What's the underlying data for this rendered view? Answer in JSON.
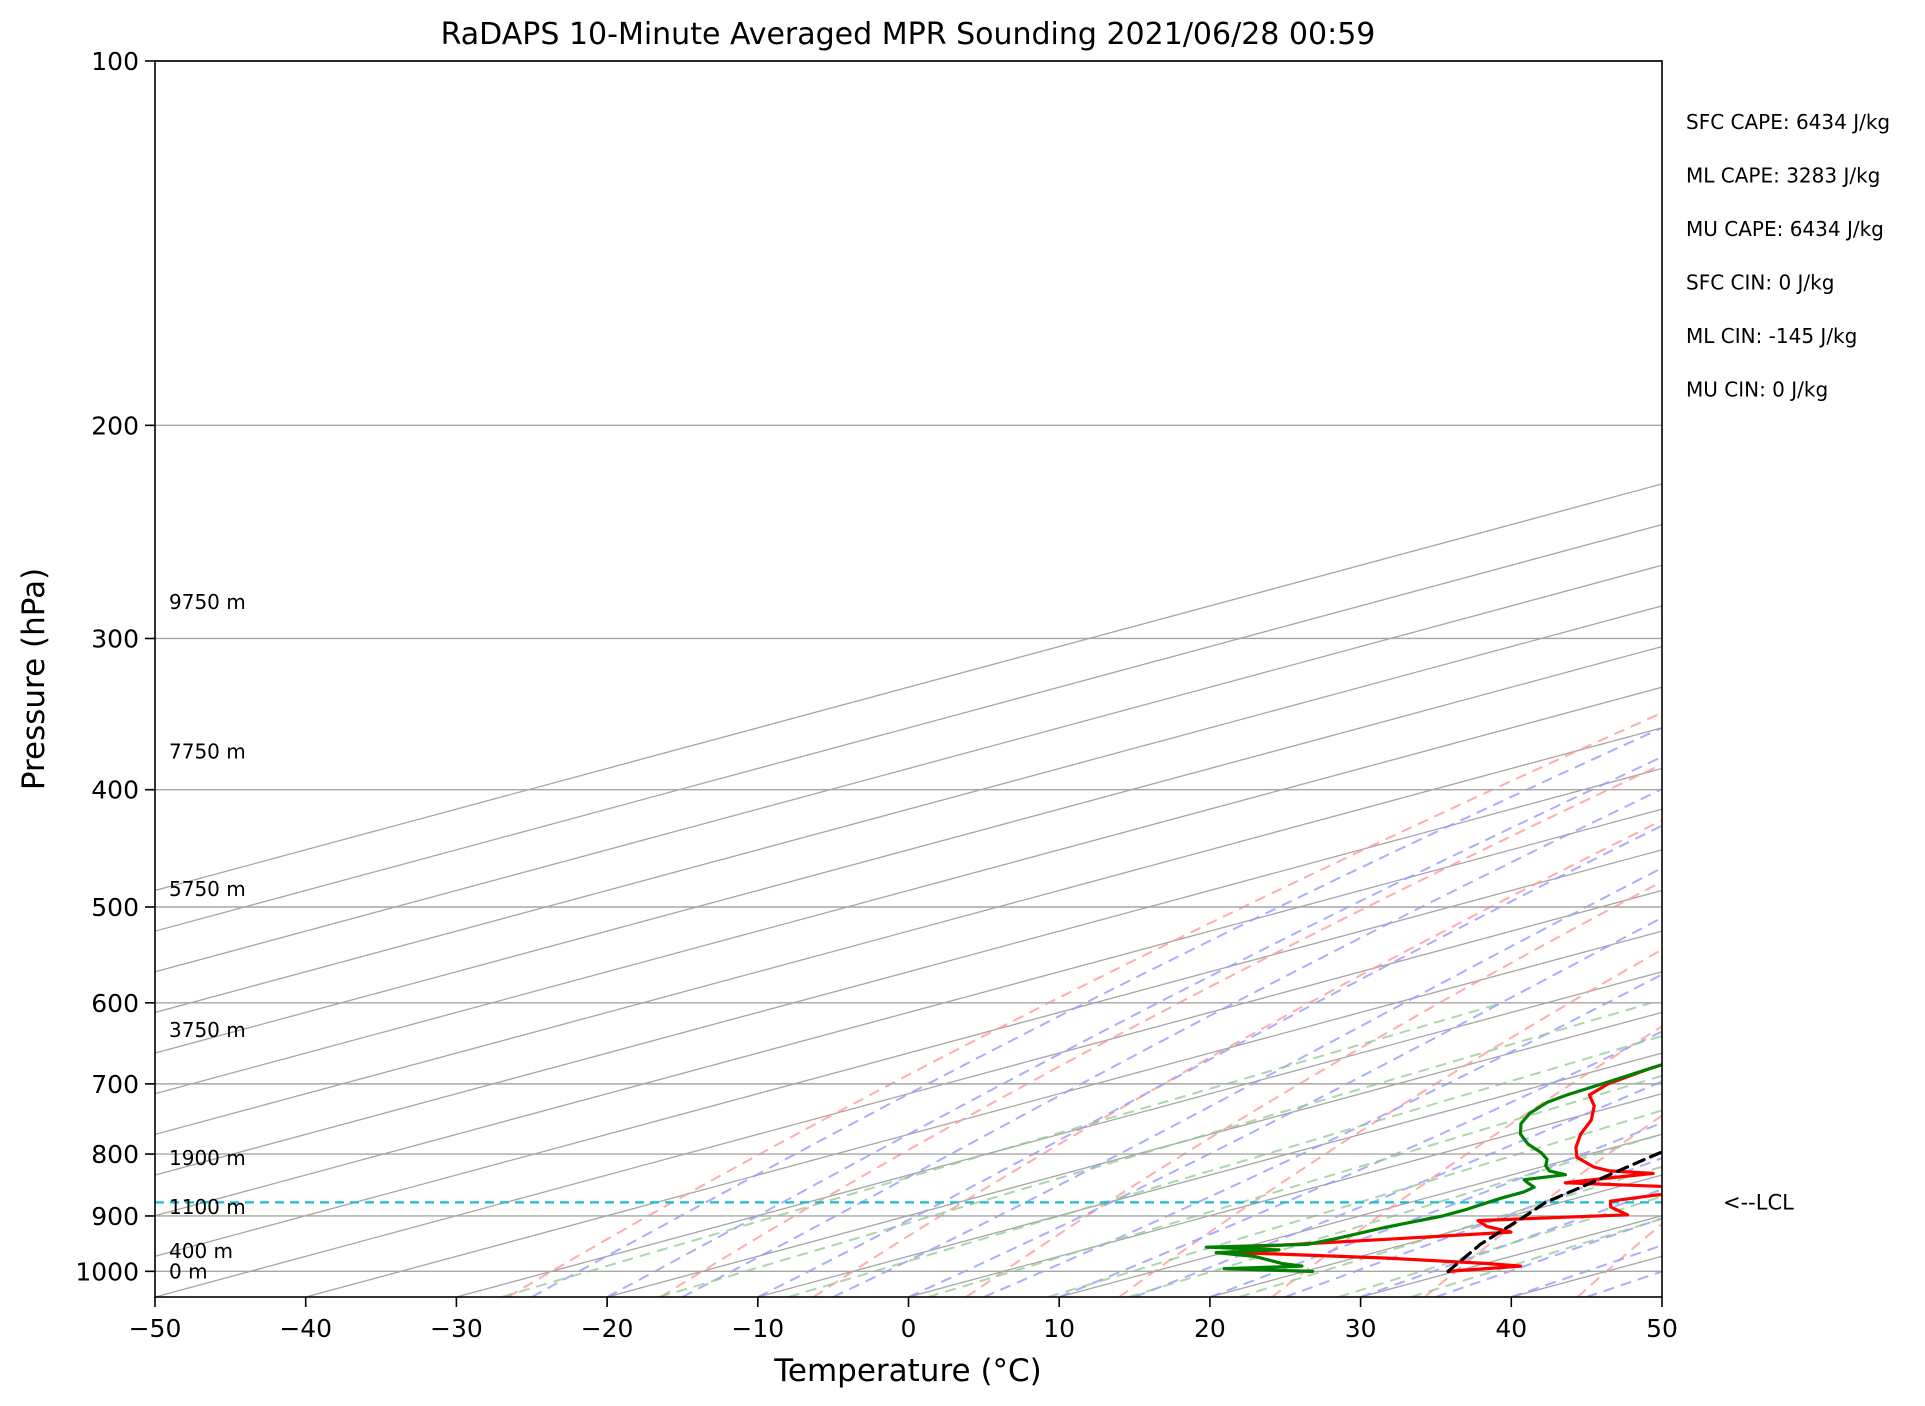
{
  "chart_data": {
    "type": "line",
    "subtype": "skew-T log-P sounding",
    "title": "RaDAPS 10-Minute Averaged MPR Sounding 2021/06/28 00:59",
    "xlabel": "Temperature (°C)",
    "ylabel": "Pressure (hPa)",
    "xlim": [
      -50,
      50
    ],
    "ylim": [
      1050,
      100
    ],
    "y_scale": "log",
    "grid": true,
    "x_ticks": [
      -50,
      -40,
      -30,
      -20,
      -10,
      0,
      10,
      20,
      30,
      40,
      50
    ],
    "x_tick_labels": [
      "−50",
      "−40",
      "−30",
      "−20",
      "−10",
      "0",
      "10",
      "20",
      "30",
      "40",
      "50"
    ],
    "y_ticks": [
      100,
      200,
      300,
      400,
      500,
      600,
      700,
      800,
      900,
      1000
    ],
    "y_tick_labels": [
      "100",
      "200",
      "300",
      "400",
      "500",
      "600",
      "700",
      "800",
      "900",
      "1000"
    ],
    "height_labels": [
      {
        "p": 280,
        "text": "9750 m"
      },
      {
        "p": 372,
        "text": "7750 m"
      },
      {
        "p": 483,
        "text": "5750 m"
      },
      {
        "p": 632,
        "text": "3750 m"
      },
      {
        "p": 806,
        "text": "1900 m"
      },
      {
        "p": 885,
        "text": "1100 m"
      },
      {
        "p": 962,
        "text": "400 m"
      },
      {
        "p": 1000,
        "text": "0 m"
      }
    ],
    "lcl": {
      "p": 877,
      "label": "<--LCL",
      "color": "#17becf"
    },
    "indices": [
      "SFC CAPE: 6434 J/kg",
      "ML CAPE: 3283 J/kg",
      "MU CAPE: 6434 J/kg",
      "SFC CIN: 0 J/kg",
      "ML CIN: -145 J/kg",
      "MU CIN: 0 J/kg"
    ],
    "colors": {
      "temperature": "#ff0000",
      "dewpoint": "#008000",
      "parcel": "#000000",
      "lcl": "#17becf",
      "dry_adiabats": "#ff9999",
      "moist_adiabats": "#9999ff",
      "mixing_ratio": "#8fc98f",
      "isotherms": "#a6a6a6"
    },
    "skew_deg_per_log_p_unit": 129.3,
    "series": [
      {
        "style": "temperature",
        "points": [
          [
            1000,
            29.5
          ],
          [
            990,
            33.0
          ],
          [
            985,
            30.0
          ],
          [
            975,
            22.0
          ],
          [
            965,
            11.0
          ],
          [
            955,
            10.0
          ],
          [
            940,
            18.0
          ],
          [
            928,
            24.0
          ],
          [
            918,
            21.0
          ],
          [
            908,
            19.0
          ],
          [
            898,
            27.5
          ],
          [
            885,
            24.5
          ],
          [
            875,
            23.0
          ],
          [
            865,
            24.5
          ],
          [
            855,
            28.0
          ],
          [
            845,
            15.5
          ],
          [
            838,
            17.0
          ],
          [
            830,
            19.0
          ],
          [
            826,
            15.5
          ],
          [
            820,
            13.5
          ],
          [
            805,
            10.0
          ],
          [
            790,
            7.5
          ],
          [
            770,
            4.5
          ],
          [
            750,
            1.8
          ],
          [
            730,
            -1.5
          ],
          [
            715,
            -4.5
          ],
          [
            700,
            -6.0
          ],
          [
            680,
            -7.0
          ],
          [
            660,
            -7.5
          ],
          [
            640,
            -8.2
          ],
          [
            620,
            -8.8
          ],
          [
            600,
            -9.2
          ],
          [
            560,
            -10.2
          ],
          [
            530,
            -11.0
          ],
          [
            520,
            -11.4
          ],
          [
            500,
            -12.0
          ],
          [
            480,
            -12.5
          ],
          [
            460,
            -13.2
          ],
          [
            440,
            -13.8
          ],
          [
            420,
            -15.0
          ],
          [
            400,
            -16.2
          ],
          [
            380,
            -17.2
          ],
          [
            360,
            -18.0
          ],
          [
            340,
            -19.0
          ],
          [
            320,
            -20.0
          ],
          [
            300,
            -20.8
          ],
          [
            285,
            -21.5
          ],
          [
            275,
            -22.0
          ],
          [
            265,
            -23.0
          ],
          [
            258,
            -24.0
          ]
        ]
      },
      {
        "style": "dewpoint",
        "points": [
          [
            1000,
            20.5
          ],
          [
            995,
            14.0
          ],
          [
            990,
            18.5
          ],
          [
            985,
            16.5
          ],
          [
            972,
            13.0
          ],
          [
            965,
            9.5
          ],
          [
            960,
            13.0
          ],
          [
            955,
            7.5
          ],
          [
            950,
            13.5
          ],
          [
            940,
            14.0
          ],
          [
            920,
            14.5
          ],
          [
            900,
            15.5
          ],
          [
            890,
            15.5
          ],
          [
            870,
            15.0
          ],
          [
            860,
            15.0
          ],
          [
            852,
            14.5
          ],
          [
            845,
            13.0
          ],
          [
            840,
            12.0
          ],
          [
            832,
            13.5
          ],
          [
            826,
            11.5
          ],
          [
            818,
            10.0
          ],
          [
            808,
            8.5
          ],
          [
            798,
            6.5
          ],
          [
            785,
            3.5
          ],
          [
            770,
            0.5
          ],
          [
            755,
            -2.0
          ],
          [
            740,
            -4.0
          ],
          [
            725,
            -5.5
          ],
          [
            715,
            -6.0
          ],
          [
            700,
            -6.4
          ],
          [
            680,
            -7.0
          ],
          [
            660,
            -7.5
          ],
          [
            640,
            -8.2
          ],
          [
            620,
            -8.8
          ],
          [
            600,
            -9.2
          ],
          [
            560,
            -10.2
          ],
          [
            530,
            -11.0
          ],
          [
            520,
            -11.4
          ],
          [
            500,
            -12.0
          ],
          [
            480,
            -12.5
          ],
          [
            460,
            -13.2
          ],
          [
            440,
            -13.8
          ],
          [
            420,
            -15.0
          ],
          [
            400,
            -16.2
          ],
          [
            380,
            -17.2
          ],
          [
            360,
            -18.0
          ],
          [
            340,
            -19.0
          ],
          [
            320,
            -20.0
          ],
          [
            300,
            -20.8
          ],
          [
            285,
            -21.5
          ],
          [
            275,
            -22.0
          ],
          [
            268,
            -23.0
          ],
          [
            258,
            -24.0
          ]
        ]
      },
      {
        "style": "parcel",
        "points": [
          [
            1000,
            29.5
          ],
          [
            950,
            25.0
          ],
          [
            900,
            21.0
          ],
          [
            877,
            19.0
          ],
          [
            850,
            17.5
          ],
          [
            800,
            14.5
          ],
          [
            750,
            11.5
          ],
          [
            700,
            8.3
          ],
          [
            650,
            5.0
          ],
          [
            600,
            1.4
          ],
          [
            550,
            -2.6
          ],
          [
            500,
            -7.2
          ],
          [
            450,
            -12.4
          ],
          [
            400,
            -18.5
          ],
          [
            350,
            -25.5
          ],
          [
            300,
            -33.5
          ],
          [
            260,
            -40.5
          ]
        ]
      }
    ]
  }
}
